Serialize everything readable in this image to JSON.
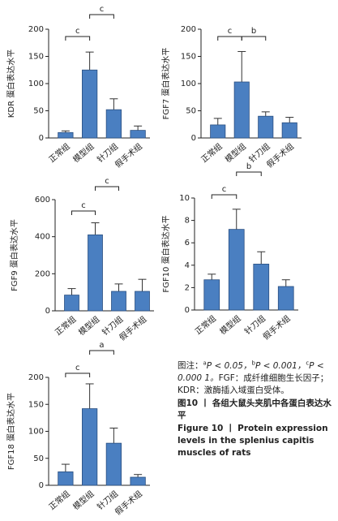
{
  "chart_data": [
    {
      "type": "bar",
      "y_label": "KDR 蛋白表达水平",
      "categories": [
        "正常组",
        "模型组",
        "针刀组",
        "假手术组"
      ],
      "values": [
        10,
        125,
        52,
        14
      ],
      "errors": [
        3,
        33,
        20,
        8
      ],
      "color": "#4a7fc1",
      "ylim": [
        0,
        200
      ],
      "yticks": [
        0,
        50,
        100,
        150,
        200
      ],
      "brackets": [
        {
          "from": 0,
          "to": 1,
          "label": "c"
        },
        {
          "from": 1,
          "to": 2,
          "label": "c"
        }
      ]
    },
    {
      "type": "bar",
      "y_label": "FGF7 蛋白表达水平",
      "categories": [
        "正常组",
        "模型组",
        "针刀组",
        "假手术组"
      ],
      "values": [
        24,
        103,
        40,
        28
      ],
      "errors": [
        12,
        56,
        8,
        10
      ],
      "color": "#4a7fc1",
      "ylim": [
        0,
        200
      ],
      "yticks": [
        0,
        50,
        100,
        150,
        200
      ],
      "brackets": [
        {
          "from": 0,
          "to": 1,
          "label": "c"
        },
        {
          "from": 1,
          "to": 2,
          "label": "b"
        }
      ]
    },
    {
      "type": "bar",
      "y_label": "FGF9 蛋白表达水平",
      "categories": [
        "正常组",
        "模型组",
        "针刀组",
        "假手术组"
      ],
      "values": [
        85,
        410,
        105,
        105
      ],
      "errors": [
        35,
        65,
        40,
        65
      ],
      "color": "#4a7fc1",
      "ylim": [
        0,
        600
      ],
      "yticks": [
        0,
        200,
        400,
        600
      ],
      "brackets": [
        {
          "from": 0,
          "to": 1,
          "label": "c"
        },
        {
          "from": 1,
          "to": 2,
          "label": "c"
        }
      ]
    },
    {
      "type": "bar",
      "y_label": "FGF10 蛋白表达水平",
      "categories": [
        "正常组",
        "模型组",
        "针刀组",
        "假手术组"
      ],
      "values": [
        2.7,
        7.2,
        4.1,
        2.1
      ],
      "errors": [
        0.5,
        1.8,
        1.1,
        0.6
      ],
      "color": "#4a7fc1",
      "ylim": [
        0,
        10
      ],
      "yticks": [
        0,
        2,
        4,
        6,
        8,
        10
      ],
      "brackets": [
        {
          "from": 0,
          "to": 1,
          "label": "c"
        },
        {
          "from": 1,
          "to": 2,
          "label": "b"
        }
      ]
    },
    {
      "type": "bar",
      "y_label": "FGF18 蛋白表达水平",
      "categories": [
        "正常组",
        "模型组",
        "针刀组",
        "假手术组"
      ],
      "values": [
        25,
        142,
        78,
        15
      ],
      "errors": [
        14,
        46,
        28,
        5
      ],
      "color": "#4a7fc1",
      "ylim": [
        0,
        200
      ],
      "yticks": [
        0,
        50,
        100,
        150,
        200
      ],
      "brackets": [
        {
          "from": 0,
          "to": 1,
          "label": "c"
        },
        {
          "from": 1,
          "to": 2,
          "label": "a"
        }
      ]
    }
  ],
  "caption": {
    "note_label": "图注：",
    "note_items": [
      {
        "sup": "a",
        "text": "P < 0.05，"
      },
      {
        "sup": "b",
        "text": "P < 0.001，"
      },
      {
        "sup": "c",
        "text": "P < 0.000 1。"
      }
    ],
    "note_text": "FGF：成纤维细胞生长因子；KDR：激酶插入域蛋白受体。",
    "title_cn": "图10 丨 各组大鼠头夹肌中各蛋白表达水平",
    "title_en": "Figure 10 丨 Protein expression levels in the splenius capitis muscles of rats"
  }
}
